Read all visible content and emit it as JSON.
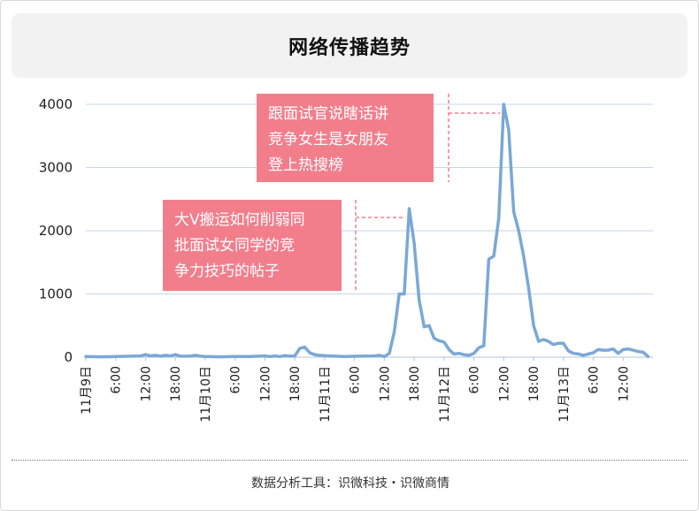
{
  "header": {
    "title": "网络传播趋势"
  },
  "footer": {
    "text": "数据分析工具：识微科技・识微商情"
  },
  "colors": {
    "line": "#7aa8d6",
    "callout": "#f27e8c",
    "callout_text": "#ffffff",
    "grid": "#c7d6e6"
  },
  "chart_data": {
    "type": "line",
    "title": "",
    "xlabel": "",
    "ylabel": "",
    "ylim": [
      0,
      4000
    ],
    "yticks": [
      0,
      1000,
      2000,
      3000,
      4000
    ],
    "xlim": [
      "11月9日 00:00",
      "11月13日 18:00"
    ],
    "xticks": [
      "11月9日",
      "6:00",
      "12:00",
      "18:00",
      "11月10日",
      "6:00",
      "12:00",
      "18:00",
      "11月11日",
      "6:00",
      "12:00",
      "18:00",
      "11月12日",
      "6:00",
      "12:00",
      "18:00",
      "11月13日",
      "6:00",
      "12:00"
    ],
    "grid": "horizontal",
    "series": [
      {
        "name": "",
        "points": [
          [
            "11-09 00:00",
            10
          ],
          [
            "11-09 03:00",
            5
          ],
          [
            "11-09 06:00",
            10
          ],
          [
            "11-09 09:00",
            15
          ],
          [
            "11-09 11:00",
            20
          ],
          [
            "11-09 12:00",
            40
          ],
          [
            "11-09 13:00",
            20
          ],
          [
            "11-09 14:00",
            30
          ],
          [
            "11-09 15:00",
            15
          ],
          [
            "11-09 16:00",
            30
          ],
          [
            "11-09 17:00",
            20
          ],
          [
            "11-09 18:00",
            40
          ],
          [
            "11-09 19:00",
            15
          ],
          [
            "11-09 21:00",
            15
          ],
          [
            "11-09 22:00",
            30
          ],
          [
            "11-09 23:00",
            15
          ],
          [
            "11-10 00:00",
            10
          ],
          [
            "11-10 03:00",
            5
          ],
          [
            "11-10 06:00",
            10
          ],
          [
            "11-10 09:00",
            10
          ],
          [
            "11-10 12:00",
            20
          ],
          [
            "11-10 13:00",
            10
          ],
          [
            "11-10 14:00",
            20
          ],
          [
            "11-10 15:00",
            10
          ],
          [
            "11-10 16:00",
            25
          ],
          [
            "11-10 17:00",
            15
          ],
          [
            "11-10 18:00",
            20
          ],
          [
            "11-10 19:00",
            140
          ],
          [
            "11-10 20:00",
            160
          ],
          [
            "11-10 21:00",
            70
          ],
          [
            "11-10 22:00",
            40
          ],
          [
            "11-10 23:00",
            30
          ],
          [
            "11-11 01:00",
            20
          ],
          [
            "11-11 04:00",
            10
          ],
          [
            "11-11 07:00",
            15
          ],
          [
            "11-11 10:00",
            20
          ],
          [
            "11-11 11:00",
            30
          ],
          [
            "11-11 12:00",
            10
          ],
          [
            "11-11 13:00",
            60
          ],
          [
            "11-11 14:00",
            400
          ],
          [
            "11-11 15:00",
            1000
          ],
          [
            "11-11 16:00",
            1000
          ],
          [
            "11-11 17:00",
            2350
          ],
          [
            "11-11 18:00",
            1800
          ],
          [
            "11-11 19:00",
            900
          ],
          [
            "11-11 20:00",
            480
          ],
          [
            "11-11 21:00",
            500
          ],
          [
            "11-11 22:00",
            300
          ],
          [
            "11-11 23:00",
            260
          ],
          [
            "11-12 00:00",
            240
          ],
          [
            "11-12 01:00",
            120
          ],
          [
            "11-12 02:00",
            50
          ],
          [
            "11-12 03:00",
            60
          ],
          [
            "11-12 04:00",
            40
          ],
          [
            "11-12 05:00",
            30
          ],
          [
            "11-12 06:00",
            60
          ],
          [
            "11-12 07:00",
            150
          ],
          [
            "11-12 08:00",
            180
          ],
          [
            "11-12 09:00",
            1550
          ],
          [
            "11-12 10:00",
            1600
          ],
          [
            "11-12 11:00",
            2200
          ],
          [
            "11-12 12:00",
            4000
          ],
          [
            "11-12 13:00",
            3600
          ],
          [
            "11-12 14:00",
            2300
          ],
          [
            "11-12 15:00",
            2000
          ],
          [
            "11-12 16:00",
            1600
          ],
          [
            "11-12 17:00",
            1100
          ],
          [
            "11-12 18:00",
            500
          ],
          [
            "11-12 19:00",
            250
          ],
          [
            "11-12 20:00",
            280
          ],
          [
            "11-12 21:00",
            250
          ],
          [
            "11-12 22:00",
            200
          ],
          [
            "11-12 23:00",
            220
          ],
          [
            "11-13 00:00",
            220
          ],
          [
            "11-13 01:00",
            100
          ],
          [
            "11-13 02:00",
            60
          ],
          [
            "11-13 03:00",
            50
          ],
          [
            "11-13 04:00",
            30
          ],
          [
            "11-13 05:00",
            50
          ],
          [
            "11-13 06:00",
            70
          ],
          [
            "11-13 07:00",
            120
          ],
          [
            "11-13 08:00",
            110
          ],
          [
            "11-13 09:00",
            110
          ],
          [
            "11-13 10:00",
            130
          ],
          [
            "11-13 11:00",
            60
          ],
          [
            "11-13 12:00",
            120
          ],
          [
            "11-13 13:00",
            130
          ],
          [
            "11-13 14:00",
            110
          ],
          [
            "11-13 15:00",
            90
          ],
          [
            "11-13 16:00",
            80
          ],
          [
            "11-13 17:00",
            10
          ]
        ]
      }
    ],
    "annotations": [
      {
        "text_lines": [
          "大V搬运如何削弱同",
          "批面试女同学的竞",
          "争力技巧的帖子"
        ],
        "target": [
          "11-11 17:00",
          2350
        ]
      },
      {
        "text_lines": [
          "跟面试官说瞎话讲",
          "竞争女生是女朋友",
          "登上热搜榜"
        ],
        "target": [
          "11-12 12:00",
          4000
        ]
      }
    ]
  }
}
